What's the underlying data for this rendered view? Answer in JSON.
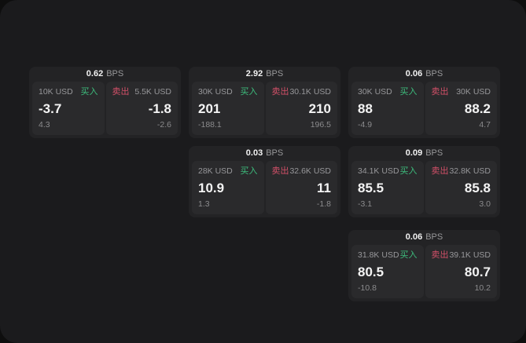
{
  "labels": {
    "bps": "BPS",
    "buy": "买入",
    "sell": "卖出"
  },
  "colors": {
    "buy": "#3dbd7d",
    "sell": "#d25068",
    "panel_bg": "#1b1b1d",
    "card_bg": "#232325",
    "subcard_bg": "#2a2a2c",
    "value_text": "#f4f4f4",
    "muted_text": "#97979a"
  },
  "cards": [
    {
      "row": 1,
      "col": 1,
      "bps": "0.62",
      "buy": {
        "amount": "10K USD",
        "value": "-3.7",
        "delta": "4.3"
      },
      "sell": {
        "amount": "5.5K USD",
        "value": "-1.8",
        "delta": "-2.6"
      }
    },
    {
      "row": 1,
      "col": 2,
      "bps": "2.92",
      "buy": {
        "amount": "30K USD",
        "value": "201",
        "delta": "-188.1"
      },
      "sell": {
        "amount": "30.1K USD",
        "value": "210",
        "delta": "196.5"
      }
    },
    {
      "row": 1,
      "col": 3,
      "bps": "0.06",
      "buy": {
        "amount": "30K USD",
        "value": "88",
        "delta": "-4.9"
      },
      "sell": {
        "amount": "30K USD",
        "value": "88.2",
        "delta": "4.7"
      }
    },
    {
      "row": 2,
      "col": 2,
      "bps": "0.03",
      "buy": {
        "amount": "28K USD",
        "value": "10.9",
        "delta": "1.3"
      },
      "sell": {
        "amount": "32.6K USD",
        "value": "11",
        "delta": "-1.8"
      }
    },
    {
      "row": 2,
      "col": 3,
      "bps": "0.09",
      "buy": {
        "amount": "34.1K USD",
        "value": "85.5",
        "delta": "-3.1"
      },
      "sell": {
        "amount": "32.8K USD",
        "value": "85.8",
        "delta": "3.0"
      }
    },
    {
      "row": 3,
      "col": 3,
      "bps": "0.06",
      "buy": {
        "amount": "31.8K USD",
        "value": "80.5",
        "delta": "-10.8"
      },
      "sell": {
        "amount": "39.1K USD",
        "value": "80.7",
        "delta": "10.2"
      }
    }
  ]
}
